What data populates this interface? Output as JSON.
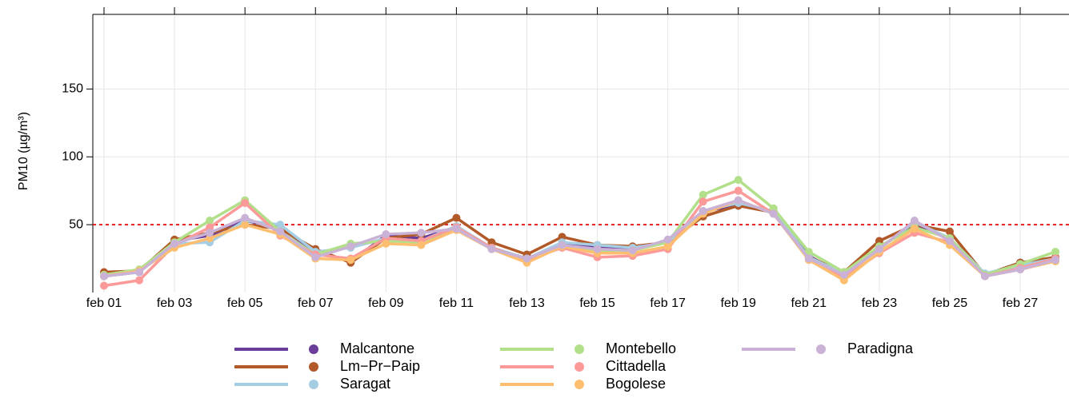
{
  "chart_data": {
    "type": "line",
    "y_label": "PM10 (µg/m³)",
    "categories": [
      "feb 01",
      null,
      "feb 03",
      null,
      "feb 05",
      null,
      "feb 07",
      null,
      "feb 09",
      null,
      "feb 11",
      null,
      "feb 13",
      null,
      "feb 15",
      null,
      "feb 17",
      null,
      "feb 19",
      null,
      "feb 21",
      null,
      "feb 23",
      null,
      "feb 25",
      null,
      "feb 27",
      null
    ],
    "series": [
      {
        "name": "Malcantone",
        "color": "#6a3d9a",
        "values": [
          12,
          15,
          38,
          42,
          53,
          48,
          30,
          23,
          42,
          40,
          48,
          33,
          25,
          36,
          33,
          32,
          37,
          60,
          64,
          60,
          27,
          13,
          33,
          50,
          40,
          13,
          22,
          25
        ]
      },
      {
        "name": "Lm−Pr−Paip",
        "color": "#b15928",
        "values": [
          15,
          16,
          39,
          44,
          50,
          47,
          32,
          22,
          40,
          43,
          55,
          37,
          28,
          41,
          35,
          34,
          37,
          56,
          64,
          59,
          26,
          15,
          38,
          50,
          45,
          13,
          22,
          26
        ]
      },
      {
        "name": "Saragat",
        "color": "#a6cee3",
        "values": [
          12,
          15,
          36,
          37,
          53,
          50,
          30,
          33,
          40,
          38,
          49,
          33,
          25,
          37,
          35,
          33,
          37,
          60,
          66,
          60,
          26,
          14,
          32,
          52,
          40,
          14,
          20,
          25
        ]
      },
      {
        "name": "Montebello",
        "color": "#b2df8a",
        "values": [
          13,
          17,
          37,
          53,
          68,
          45,
          28,
          36,
          38,
          37,
          48,
          33,
          24,
          35,
          30,
          31,
          37,
          72,
          83,
          62,
          30,
          15,
          34,
          48,
          40,
          13,
          21,
          30
        ]
      },
      {
        "name": "Cittadella",
        "color": "#fb9a99",
        "values": [
          5,
          9,
          35,
          48,
          66,
          42,
          28,
          25,
          40,
          38,
          48,
          33,
          24,
          33,
          26,
          27,
          32,
          67,
          75,
          58,
          25,
          11,
          29,
          44,
          37,
          12,
          18,
          25
        ]
      },
      {
        "name": "Bogolese",
        "color": "#fdbf6f",
        "values": [
          12,
          16,
          33,
          40,
          50,
          43,
          25,
          24,
          36,
          35,
          46,
          32,
          22,
          34,
          29,
          29,
          34,
          58,
          68,
          58,
          24,
          9,
          30,
          47,
          35,
          12,
          17,
          23
        ]
      },
      {
        "name": "Paradigna",
        "color": "#cab2d6",
        "values": [
          12,
          15,
          36,
          44,
          55,
          45,
          26,
          34,
          43,
          44,
          47,
          32,
          25,
          35,
          32,
          31,
          39,
          60,
          68,
          58,
          25,
          13,
          32,
          53,
          38,
          12,
          17,
          24
        ]
      }
    ],
    "ylim": [
      0,
      205
    ],
    "yticks": [
      50,
      100,
      150
    ],
    "grid": true,
    "threshold": 50,
    "threshold_color": "#e41a1c",
    "legend": "bottom"
  }
}
